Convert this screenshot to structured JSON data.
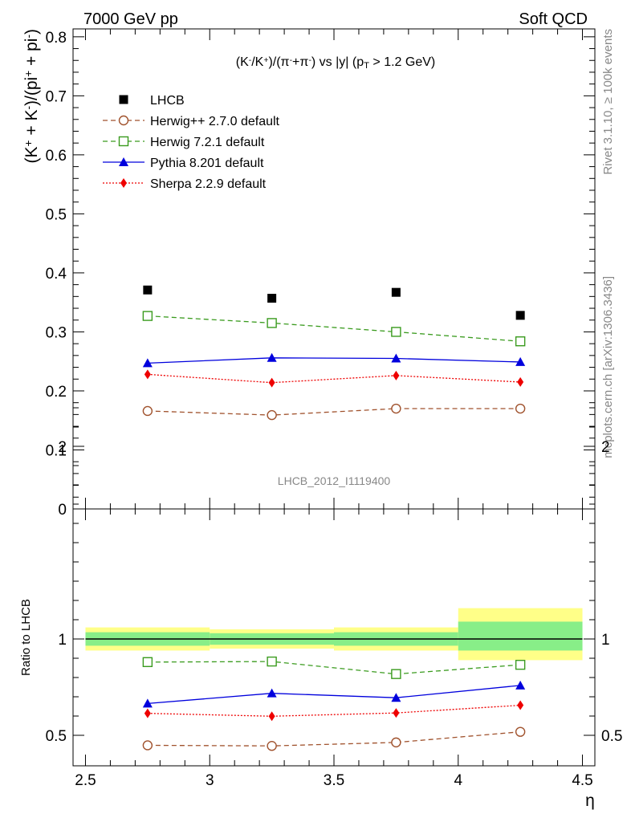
{
  "header": {
    "left": "7000 GeV pp",
    "right": "Soft QCD"
  },
  "side_text": {
    "rivet": "Rivet 3.1.10, ≥ 100k events",
    "source": "mcplots.cern.ch [arXiv:1306.3436]"
  },
  "analysis_tag": "LHCB_2012_I1119400",
  "colors": {
    "lhcb": "#000000",
    "herwigpp": "#a0522d",
    "herwig7": "#3a9b1e",
    "pythia": "#0000dd",
    "sherpa": "#ee0000",
    "band_outer": "#ffff88",
    "band_inner": "#88ee88"
  },
  "chart_data": [
    {
      "type": "scatter",
      "panel": "main",
      "title_parts": [
        "(K",
        "-",
        "/K",
        "+",
        ")/(π",
        "-",
        "+π",
        "-",
        ") vs |y| (p",
        "T",
        " > 1.2 GeV)"
      ],
      "ylabel_parts": [
        "(K",
        "+",
        " + K",
        "-",
        ")/(pi",
        "+",
        " + pi",
        "-",
        ")"
      ],
      "ylim": [
        0,
        0.82
      ],
      "yticks": [
        "0",
        "0.1",
        "0.2",
        "0.3",
        "0.4",
        "0.5",
        "0.6",
        "0.7",
        "0.8"
      ],
      "x": [
        2.75,
        3.25,
        3.75,
        4.25
      ],
      "series": [
        {
          "key": "lhcb",
          "name": "LHCB",
          "marker": "square",
          "line": "none",
          "values": [
            0.371,
            0.357,
            0.367,
            0.328
          ],
          "errors": [
            0.004,
            0.004,
            0.004,
            0.006
          ]
        },
        {
          "key": "herwig7",
          "name": "Herwig 7.2.1 default",
          "marker": "open-square",
          "line": "dashed",
          "values": [
            0.327,
            0.315,
            0.3,
            0.284
          ],
          "errors": [
            0.003,
            0.003,
            0.003,
            0.003
          ]
        },
        {
          "key": "pythia",
          "name": "Pythia 8.201 default",
          "marker": "triangle",
          "line": "solid",
          "values": [
            0.247,
            0.256,
            0.255,
            0.249
          ],
          "errors": [
            0.003,
            0.003,
            0.004,
            0.005
          ]
        },
        {
          "key": "sherpa",
          "name": "Sherpa 2.2.9 default",
          "marker": "diamond",
          "line": "dotted",
          "values": [
            0.228,
            0.214,
            0.226,
            0.215
          ],
          "errors": [
            0.003,
            0.003,
            0.003,
            0.004
          ]
        },
        {
          "key": "herwigpp",
          "name": "Herwig++ 2.7.0 default",
          "marker": "open-circle",
          "line": "dashed",
          "values": [
            0.166,
            0.159,
            0.17,
            0.17
          ],
          "errors": [
            0.002,
            0.002,
            0.002,
            0.002
          ]
        }
      ],
      "legend_order": [
        "lhcb",
        "herwigpp",
        "herwig7",
        "pythia",
        "sherpa"
      ]
    },
    {
      "type": "scatter",
      "panel": "ratio",
      "ylabel": "Ratio to LHCB",
      "xlabel": "η",
      "xlim": [
        2.45,
        4.55
      ],
      "xticks": [
        "2.5",
        "3",
        "3.5",
        "4",
        "4.5"
      ],
      "ylim": [
        0.35,
        2.3
      ],
      "yticks": [
        "0.5",
        "1",
        "2"
      ],
      "bins": [
        [
          2.5,
          3.0
        ],
        [
          3.0,
          3.5
        ],
        [
          3.5,
          4.0
        ],
        [
          4.0,
          4.5
        ]
      ],
      "band_outer": [
        [
          0.94,
          1.06
        ],
        [
          0.95,
          1.05
        ],
        [
          0.94,
          1.06
        ],
        [
          0.89,
          1.16
        ]
      ],
      "band_inner": [
        [
          0.965,
          1.035
        ],
        [
          0.97,
          1.03
        ],
        [
          0.965,
          1.035
        ],
        [
          0.94,
          1.09
        ]
      ],
      "x": [
        2.75,
        3.25,
        3.75,
        4.25
      ],
      "series": [
        {
          "key": "herwig7",
          "marker": "open-square",
          "line": "dashed",
          "values": [
            0.88,
            0.883,
            0.818,
            0.866
          ],
          "errors": [
            0.01,
            0.01,
            0.01,
            0.015
          ]
        },
        {
          "key": "pythia",
          "marker": "triangle",
          "line": "solid",
          "values": [
            0.665,
            0.718,
            0.695,
            0.759
          ],
          "errors": [
            0.008,
            0.01,
            0.01,
            0.015
          ]
        },
        {
          "key": "sherpa",
          "marker": "diamond",
          "line": "dotted",
          "values": [
            0.614,
            0.599,
            0.616,
            0.656
          ],
          "errors": [
            0.01,
            0.01,
            0.01,
            0.015
          ]
        },
        {
          "key": "herwigpp",
          "marker": "open-circle",
          "line": "dashed",
          "values": [
            0.448,
            0.445,
            0.463,
            0.518
          ],
          "errors": [
            0.015,
            0.015,
            0.015,
            0.02
          ]
        }
      ]
    }
  ]
}
